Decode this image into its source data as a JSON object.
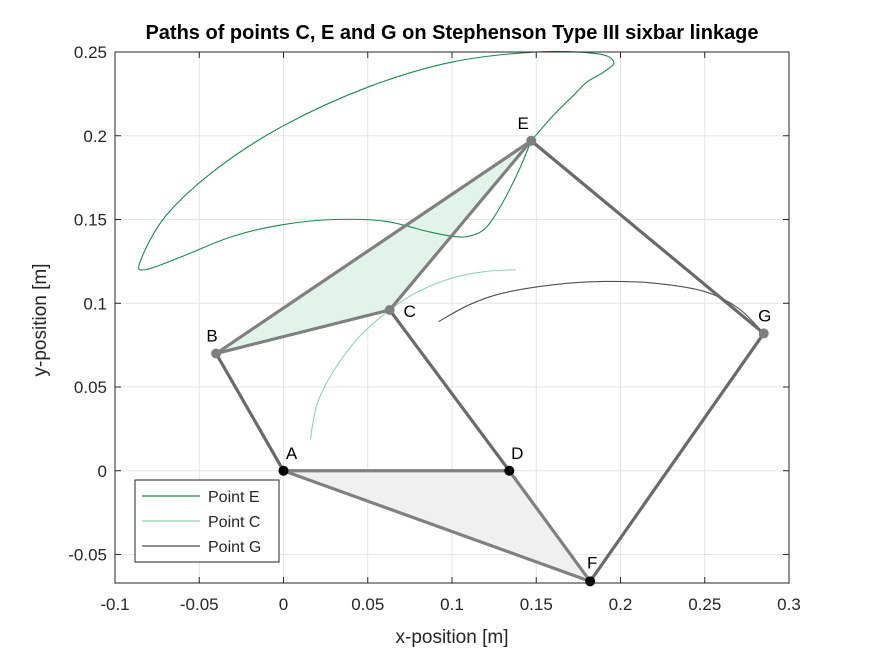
{
  "chart_data": {
    "type": "line",
    "title": "Paths of points C, E and G on Stephenson Type III sixbar linkage",
    "xlabel": "x-position [m]",
    "ylabel": "y-position [m]",
    "xlim": [
      -0.1,
      0.3
    ],
    "ylim": [
      -0.067,
      0.25
    ],
    "xticks": [
      -0.1,
      -0.05,
      0,
      0.05,
      0.1,
      0.15,
      0.2,
      0.25,
      0.3
    ],
    "xtick_labels": [
      "-0.1",
      "-0.05",
      "0",
      "0.05",
      "0.1",
      "0.15",
      "0.2",
      "0.25",
      "0.3"
    ],
    "yticks": [
      -0.05,
      0,
      0.05,
      0.1,
      0.15,
      0.2,
      0.25
    ],
    "ytick_labels": [
      "-0.05",
      "0",
      "0.05",
      "0.1",
      "0.15",
      "0.2",
      "0.25"
    ],
    "grid": true,
    "legend_position": "bottom-left",
    "series": [
      {
        "name": "Point E",
        "color": "#1a8a4e",
        "x": [
          0.147,
          0.16,
          0.172,
          0.18,
          0.19,
          0.196,
          0.186,
          0.15,
          0.1,
          0.05,
          0.0,
          -0.04,
          -0.07,
          -0.085,
          -0.082,
          -0.06,
          -0.03,
          0.0,
          0.03,
          0.06,
          0.085,
          0.1,
          0.11,
          0.12,
          0.13,
          0.14,
          0.147
        ],
        "y": [
          0.197,
          0.212,
          0.224,
          0.232,
          0.238,
          0.244,
          0.249,
          0.25,
          0.244,
          0.229,
          0.206,
          0.18,
          0.152,
          0.125,
          0.12,
          0.128,
          0.14,
          0.147,
          0.15,
          0.149,
          0.143,
          0.14,
          0.14,
          0.145,
          0.16,
          0.18,
          0.197
        ]
      },
      {
        "name": "Point C",
        "color": "#8fd4b0",
        "x": [
          0.016,
          0.02,
          0.03,
          0.045,
          0.063,
          0.08,
          0.1,
          0.12,
          0.138
        ],
        "y": [
          0.019,
          0.04,
          0.06,
          0.08,
          0.096,
          0.107,
          0.115,
          0.119,
          0.12
        ]
      },
      {
        "name": "Point G",
        "color": "#505050",
        "x": [
          0.092,
          0.11,
          0.13,
          0.16,
          0.19,
          0.22,
          0.25,
          0.27,
          0.285
        ],
        "y": [
          0.089,
          0.099,
          0.106,
          0.111,
          0.113,
          0.112,
          0.107,
          0.097,
          0.082
        ]
      }
    ],
    "joints": [
      {
        "label": "A",
        "x": 0.0,
        "y": 0.0,
        "fixed": true
      },
      {
        "label": "B",
        "x": -0.04,
        "y": 0.07,
        "fixed": false
      },
      {
        "label": "C",
        "x": 0.063,
        "y": 0.096,
        "fixed": false
      },
      {
        "label": "D",
        "x": 0.134,
        "y": 0.0,
        "fixed": true
      },
      {
        "label": "E",
        "x": 0.147,
        "y": 0.197,
        "fixed": false
      },
      {
        "label": "F",
        "x": 0.182,
        "y": -0.066,
        "fixed": true
      },
      {
        "label": "G",
        "x": 0.285,
        "y": 0.082,
        "fixed": false
      }
    ],
    "links": [
      [
        "A",
        "B"
      ],
      [
        "B",
        "C"
      ],
      [
        "B",
        "E"
      ],
      [
        "C",
        "E"
      ],
      [
        "C",
        "D"
      ],
      [
        "E",
        "G"
      ],
      [
        "G",
        "F"
      ],
      [
        "A",
        "D"
      ],
      [
        "A",
        "F"
      ],
      [
        "D",
        "F"
      ]
    ],
    "shaded_triangles": [
      {
        "vertices": [
          "B",
          "C",
          "E"
        ],
        "color": "#e2f3ea"
      },
      {
        "vertices": [
          "A",
          "D",
          "F"
        ],
        "color": "#f0f0f0"
      }
    ]
  }
}
